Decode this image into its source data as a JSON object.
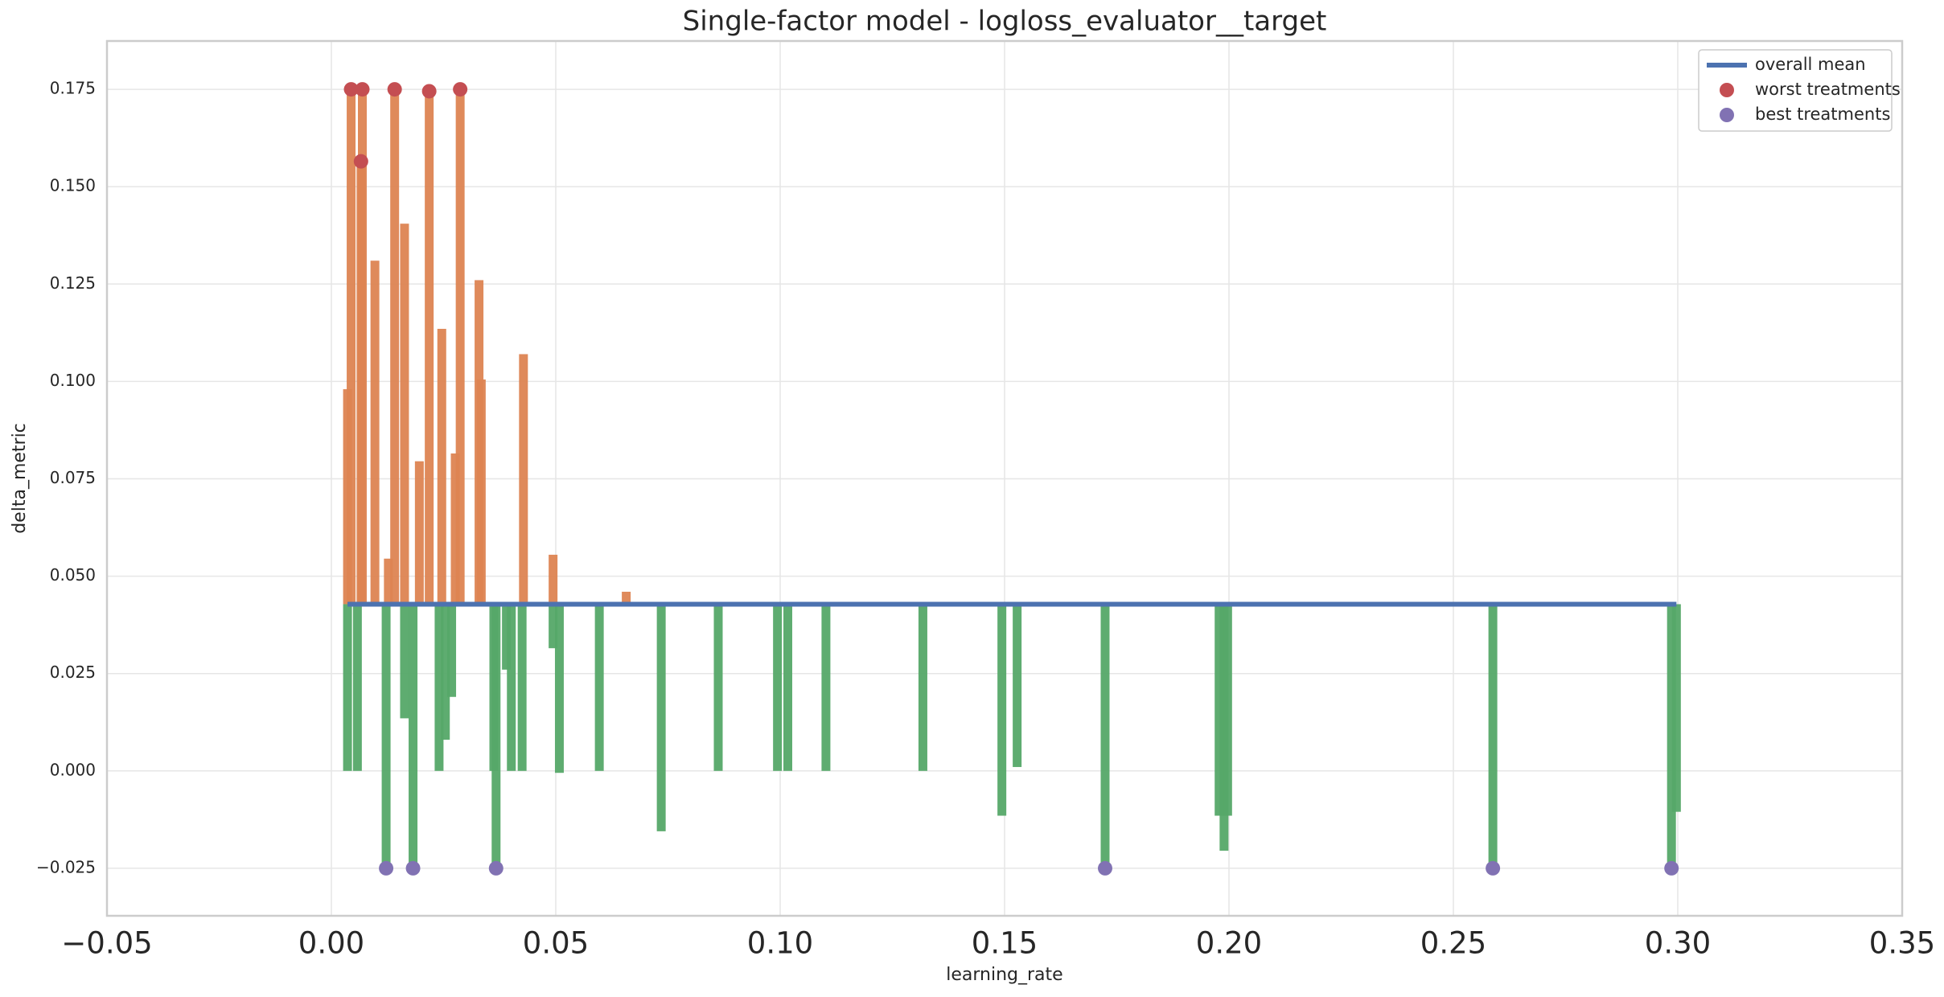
{
  "chart_data": {
    "type": "bar",
    "title": "Single-factor model - logloss_evaluator__target",
    "x_label": "learning_rate",
    "y_label": "delta_metric",
    "xlim": [
      -0.05,
      0.35
    ],
    "ylim": [
      -0.0372,
      0.1874
    ],
    "xticks": [
      {
        "value": -0.05,
        "label": "−0.05"
      },
      {
        "value": 0,
        "label": "0.00"
      },
      {
        "value": 0.05,
        "label": "0.05"
      },
      {
        "value": 0.1,
        "label": "0.10"
      },
      {
        "value": 0.15,
        "label": "0.15"
      },
      {
        "value": 0.2,
        "label": "0.20"
      },
      {
        "value": 0.25,
        "label": "0.25"
      },
      {
        "value": 0.3,
        "label": "0.30"
      },
      {
        "value": 0.35,
        "label": "0.35"
      }
    ],
    "yticks": [
      {
        "value": -0.025,
        "label": "−0.025"
      },
      {
        "value": 0,
        "label": "0.000"
      },
      {
        "value": 0.025,
        "label": "0.025"
      },
      {
        "value": 0.05,
        "label": "0.050"
      },
      {
        "value": 0.075,
        "label": "0.075"
      },
      {
        "value": 0.1,
        "label": "0.100"
      },
      {
        "value": 0.125,
        "label": "0.125"
      },
      {
        "value": 0.15,
        "label": "0.150"
      },
      {
        "value": 0.175,
        "label": "0.175"
      }
    ],
    "grid": true,
    "legend": "upper right",
    "upper_bars": {
      "color": "#dd8452",
      "x": [
        0.0036,
        0.0044,
        0.0066,
        0.0069,
        0.0097,
        0.0127,
        0.0141,
        0.0163,
        0.0196,
        0.0218,
        0.0246,
        0.0276,
        0.0287,
        0.0329,
        0.0334,
        0.0428,
        0.0494,
        0.0657
      ],
      "values": [
        0.098,
        0.175,
        0.1565,
        0.175,
        0.131,
        0.0545,
        0.175,
        0.1405,
        0.0795,
        0.1745,
        0.1135,
        0.0815,
        0.175,
        0.126,
        0.1005,
        0.107,
        0.0555,
        0.046
      ]
    },
    "lower_bars": {
      "color": "#55a868",
      "x": [
        0.0036,
        0.0058,
        0.0122,
        0.0163,
        0.0182,
        0.024,
        0.0254,
        0.0268,
        0.0362,
        0.0367,
        0.039,
        0.0401,
        0.0425,
        0.0494,
        0.0508,
        0.0597,
        0.0735,
        0.0862,
        0.0994,
        0.1017,
        0.1102,
        0.1318,
        0.1494,
        0.1528,
        0.1724,
        0.1978,
        0.1989,
        0.1997,
        0.2588,
        0.2986,
        0.2997
      ],
      "values": [
        0,
        0,
        -0.025,
        0.0135,
        -0.025,
        0,
        0.008,
        0.019,
        0,
        -0.025,
        0.026,
        0,
        0,
        0.0315,
        -0.0005,
        0,
        -0.0155,
        0,
        0,
        0,
        0,
        0,
        -0.0115,
        0.001,
        -0.025,
        -0.0115,
        -0.0205,
        -0.0115,
        -0.025,
        -0.025,
        -0.0105
      ]
    },
    "series": [
      {
        "name": "overall mean",
        "kind": "line",
        "color": "#4c72b0",
        "x": [
          0.0036,
          0.2997
        ],
        "values": [
          0.0428,
          0.0428
        ]
      },
      {
        "name": "worst treatments",
        "kind": "scatter",
        "color": "#c44e52",
        "x": [
          0.0044,
          0.0066,
          0.0069,
          0.0141,
          0.0218,
          0.0287
        ],
        "values": [
          0.175,
          0.1565,
          0.175,
          0.175,
          0.1745,
          0.175
        ]
      },
      {
        "name": "best treatments",
        "kind": "scatter",
        "color": "#8172b3",
        "x": [
          0.0122,
          0.0182,
          0.0367,
          0.1724,
          0.2588,
          0.2986
        ],
        "values": [
          -0.025,
          -0.025,
          -0.025,
          -0.025,
          -0.025,
          -0.025
        ]
      }
    ]
  }
}
